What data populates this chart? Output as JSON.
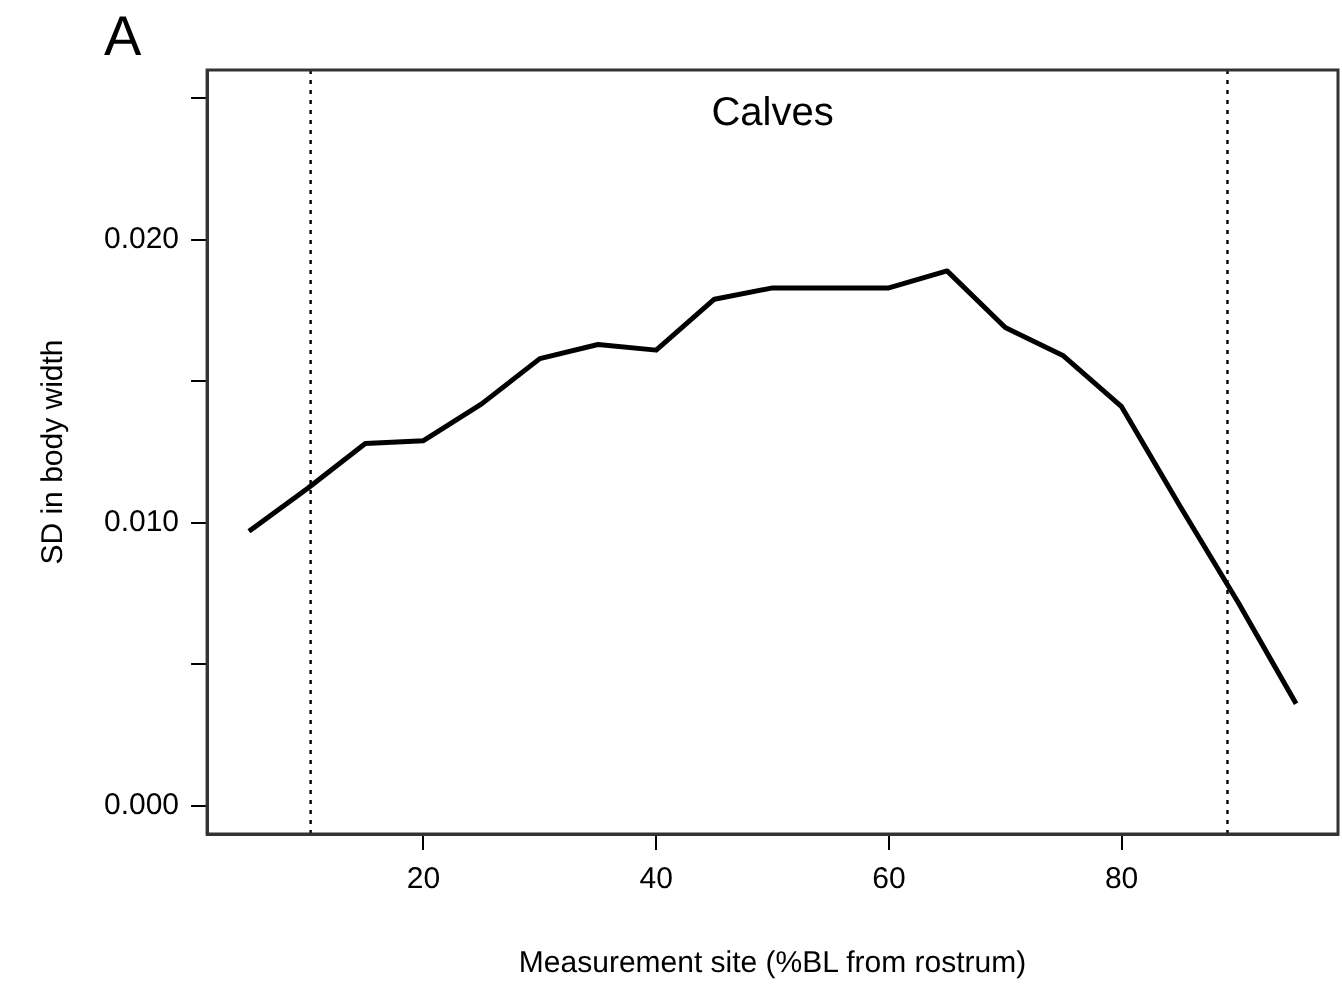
{
  "chart_data": {
    "type": "line",
    "title": "Calves",
    "xlabel": "Measurement site (%BL from rostrum)",
    "ylabel": "SD in body width",
    "annotations": [
      "A"
    ],
    "x": [
      5,
      10,
      15,
      20,
      25,
      30,
      35,
      40,
      45,
      50,
      55,
      60,
      65,
      70,
      75,
      80,
      85,
      90,
      95
    ],
    "series": [
      {
        "color": "#000000",
        "values": [
          0.0097,
          0.0112,
          0.0128,
          0.0129,
          0.0142,
          0.0158,
          0.0163,
          0.0161,
          0.0179,
          0.0183,
          0.0183,
          0.0183,
          0.0189,
          0.0169,
          0.0159,
          0.0141,
          0.0106,
          0.0072,
          0.0036
        ]
      }
    ],
    "xlim": [
      1.4,
      98.6
    ],
    "xticks": [
      20,
      40,
      60,
      80
    ],
    "ylim": [
      -0.001,
      0.026
    ],
    "yticks": [
      {
        "value": 0,
        "label": "0.000"
      },
      {
        "value": 0.005,
        "label": null
      },
      {
        "value": 0.01,
        "label": "0.010"
      },
      {
        "value": 0.015,
        "label": null
      },
      {
        "value": 0.02,
        "label": "0.020"
      },
      {
        "value": 0.025,
        "label": null
      }
    ],
    "ref_lines": [
      {
        "axis": "x",
        "value": 10.3,
        "line_style": "dotted",
        "color": "#000000"
      },
      {
        "axis": "x",
        "value": 89.1,
        "line_style": "dotted",
        "color": "#000000"
      }
    ],
    "grid": false,
    "legend": false,
    "marker": "none",
    "line_style": "solid"
  }
}
